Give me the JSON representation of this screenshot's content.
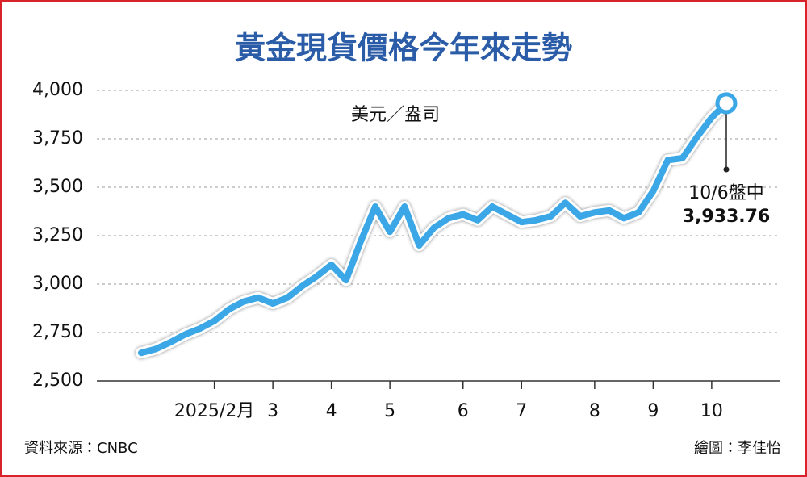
{
  "chart_data": {
    "type": "line",
    "title": "黃金現貨價格今年來走勢",
    "y_label": "美元／盎司",
    "categories": [
      null,
      null,
      null,
      null,
      null,
      "2025/2月",
      null,
      null,
      null,
      "3",
      null,
      null,
      null,
      "4",
      null,
      null,
      null,
      "5",
      null,
      null,
      null,
      null,
      "6",
      null,
      null,
      null,
      "7",
      null,
      null,
      null,
      null,
      "8",
      null,
      null,
      null,
      "9",
      null,
      null,
      null,
      "10",
      null
    ],
    "values": [
      2645,
      2665,
      2700,
      2740,
      2770,
      2810,
      2870,
      2910,
      2930,
      2900,
      2930,
      2990,
      3040,
      3100,
      3020,
      3220,
      3400,
      3270,
      3400,
      3200,
      3290,
      3340,
      3360,
      3330,
      3400,
      3360,
      3320,
      3330,
      3350,
      3420,
      3350,
      3370,
      3380,
      3340,
      3370,
      3480,
      3640,
      3650,
      3760,
      3860,
      3933.76
    ],
    "value_labels": [
      null,
      null,
      null,
      null,
      null,
      null,
      null,
      null,
      null,
      null,
      null,
      null,
      null,
      null,
      null,
      null,
      null,
      null,
      null,
      null,
      null,
      null,
      null,
      null,
      null,
      null,
      null,
      null,
      null,
      null,
      null,
      null,
      null,
      null,
      null,
      null,
      null,
      null,
      null,
      null,
      "3,933.76"
    ],
    "annotation": "10/6盤中",
    "color": "#3ba7e6",
    "ylim": [
      2500,
      4000
    ],
    "yticks": [
      {
        "value": 2500,
        "label": "2,500"
      },
      {
        "value": 2750,
        "label": "2,750"
      },
      {
        "value": 3000,
        "label": "3,000"
      },
      {
        "value": 3250,
        "label": "3,250"
      },
      {
        "value": 3500,
        "label": "3,500"
      },
      {
        "value": 3750,
        "label": "3,750"
      },
      {
        "value": 4000,
        "label": "4,000"
      }
    ],
    "grid": true
  },
  "footer": {
    "source": "資料來源：CNBC",
    "credit": "繪圖：李佳怡"
  }
}
